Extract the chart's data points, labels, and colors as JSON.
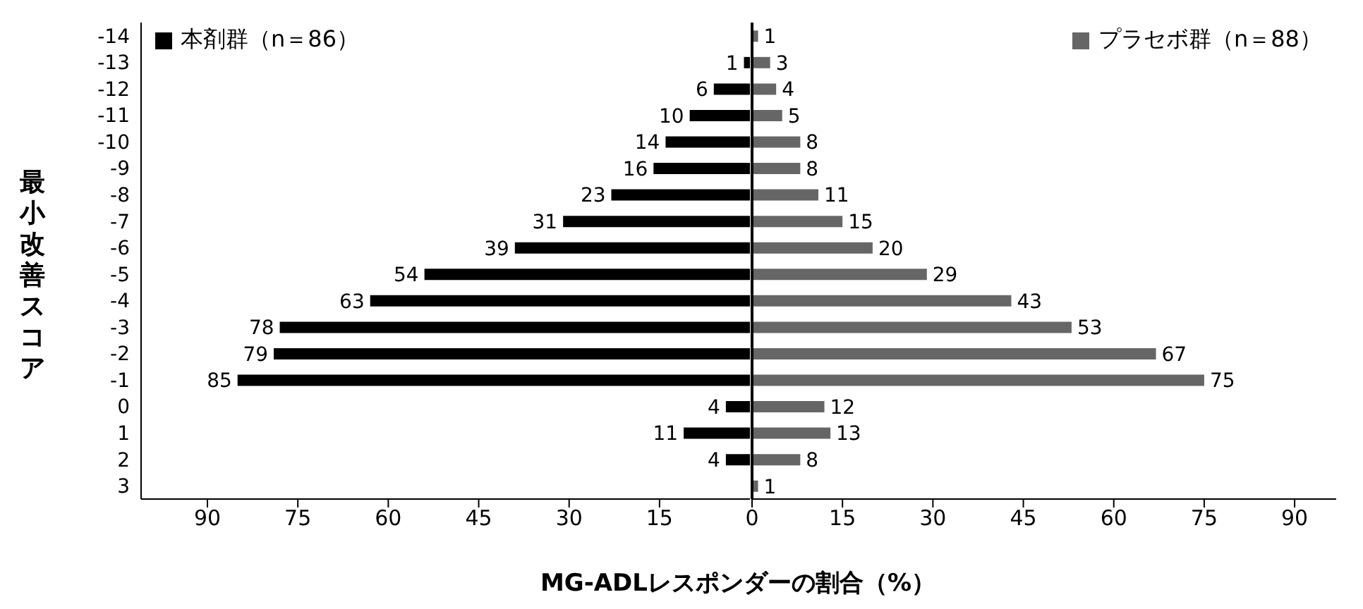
{
  "chart_data": [
    {
      "type": "bar",
      "orientation": "horizontal",
      "xlabel": "MG-ADLレスポンダーの割合（%）",
      "ylabel": "最小改善スコア",
      "categories": [
        "-14",
        "-13",
        "-12",
        "-11",
        "-10",
        "-9",
        "-8",
        "-7",
        "-6",
        "-5",
        "-4",
        "-3",
        "-2",
        "-1",
        "0",
        "1",
        "2",
        "3"
      ],
      "series": [
        {
          "name": "本剤群（n＝86）",
          "color": "#000000",
          "values": [
            null,
            1,
            6,
            10,
            14,
            16,
            23,
            31,
            39,
            54,
            63,
            78,
            79,
            85,
            4,
            11,
            4,
            null
          ]
        }
      ],
      "xlim": [
        101,
        0
      ],
      "xticks": [
        90,
        75,
        60,
        45,
        30,
        15
      ],
      "data_labels": true,
      "legend": "top left"
    },
    {
      "type": "bar",
      "orientation": "horizontal",
      "categories": [
        "-14",
        "-13",
        "-12",
        "-11",
        "-10",
        "-9",
        "-8",
        "-7",
        "-6",
        "-5",
        "-4",
        "-3",
        "-2",
        "-1",
        "0",
        "1",
        "2",
        "3"
      ],
      "series": [
        {
          "name": "プラセボ群（n＝88）",
          "color": "#666666",
          "values": [
            1,
            3,
            4,
            5,
            8,
            8,
            11,
            15,
            20,
            29,
            43,
            53,
            67,
            75,
            12,
            13,
            8,
            1
          ]
        }
      ],
      "xlim": [
        0,
        97
      ],
      "xticks": [
        0,
        15,
        30,
        45,
        60,
        75,
        90
      ],
      "data_labels": true,
      "tick_labels": "x",
      "legend": "top right"
    }
  ]
}
